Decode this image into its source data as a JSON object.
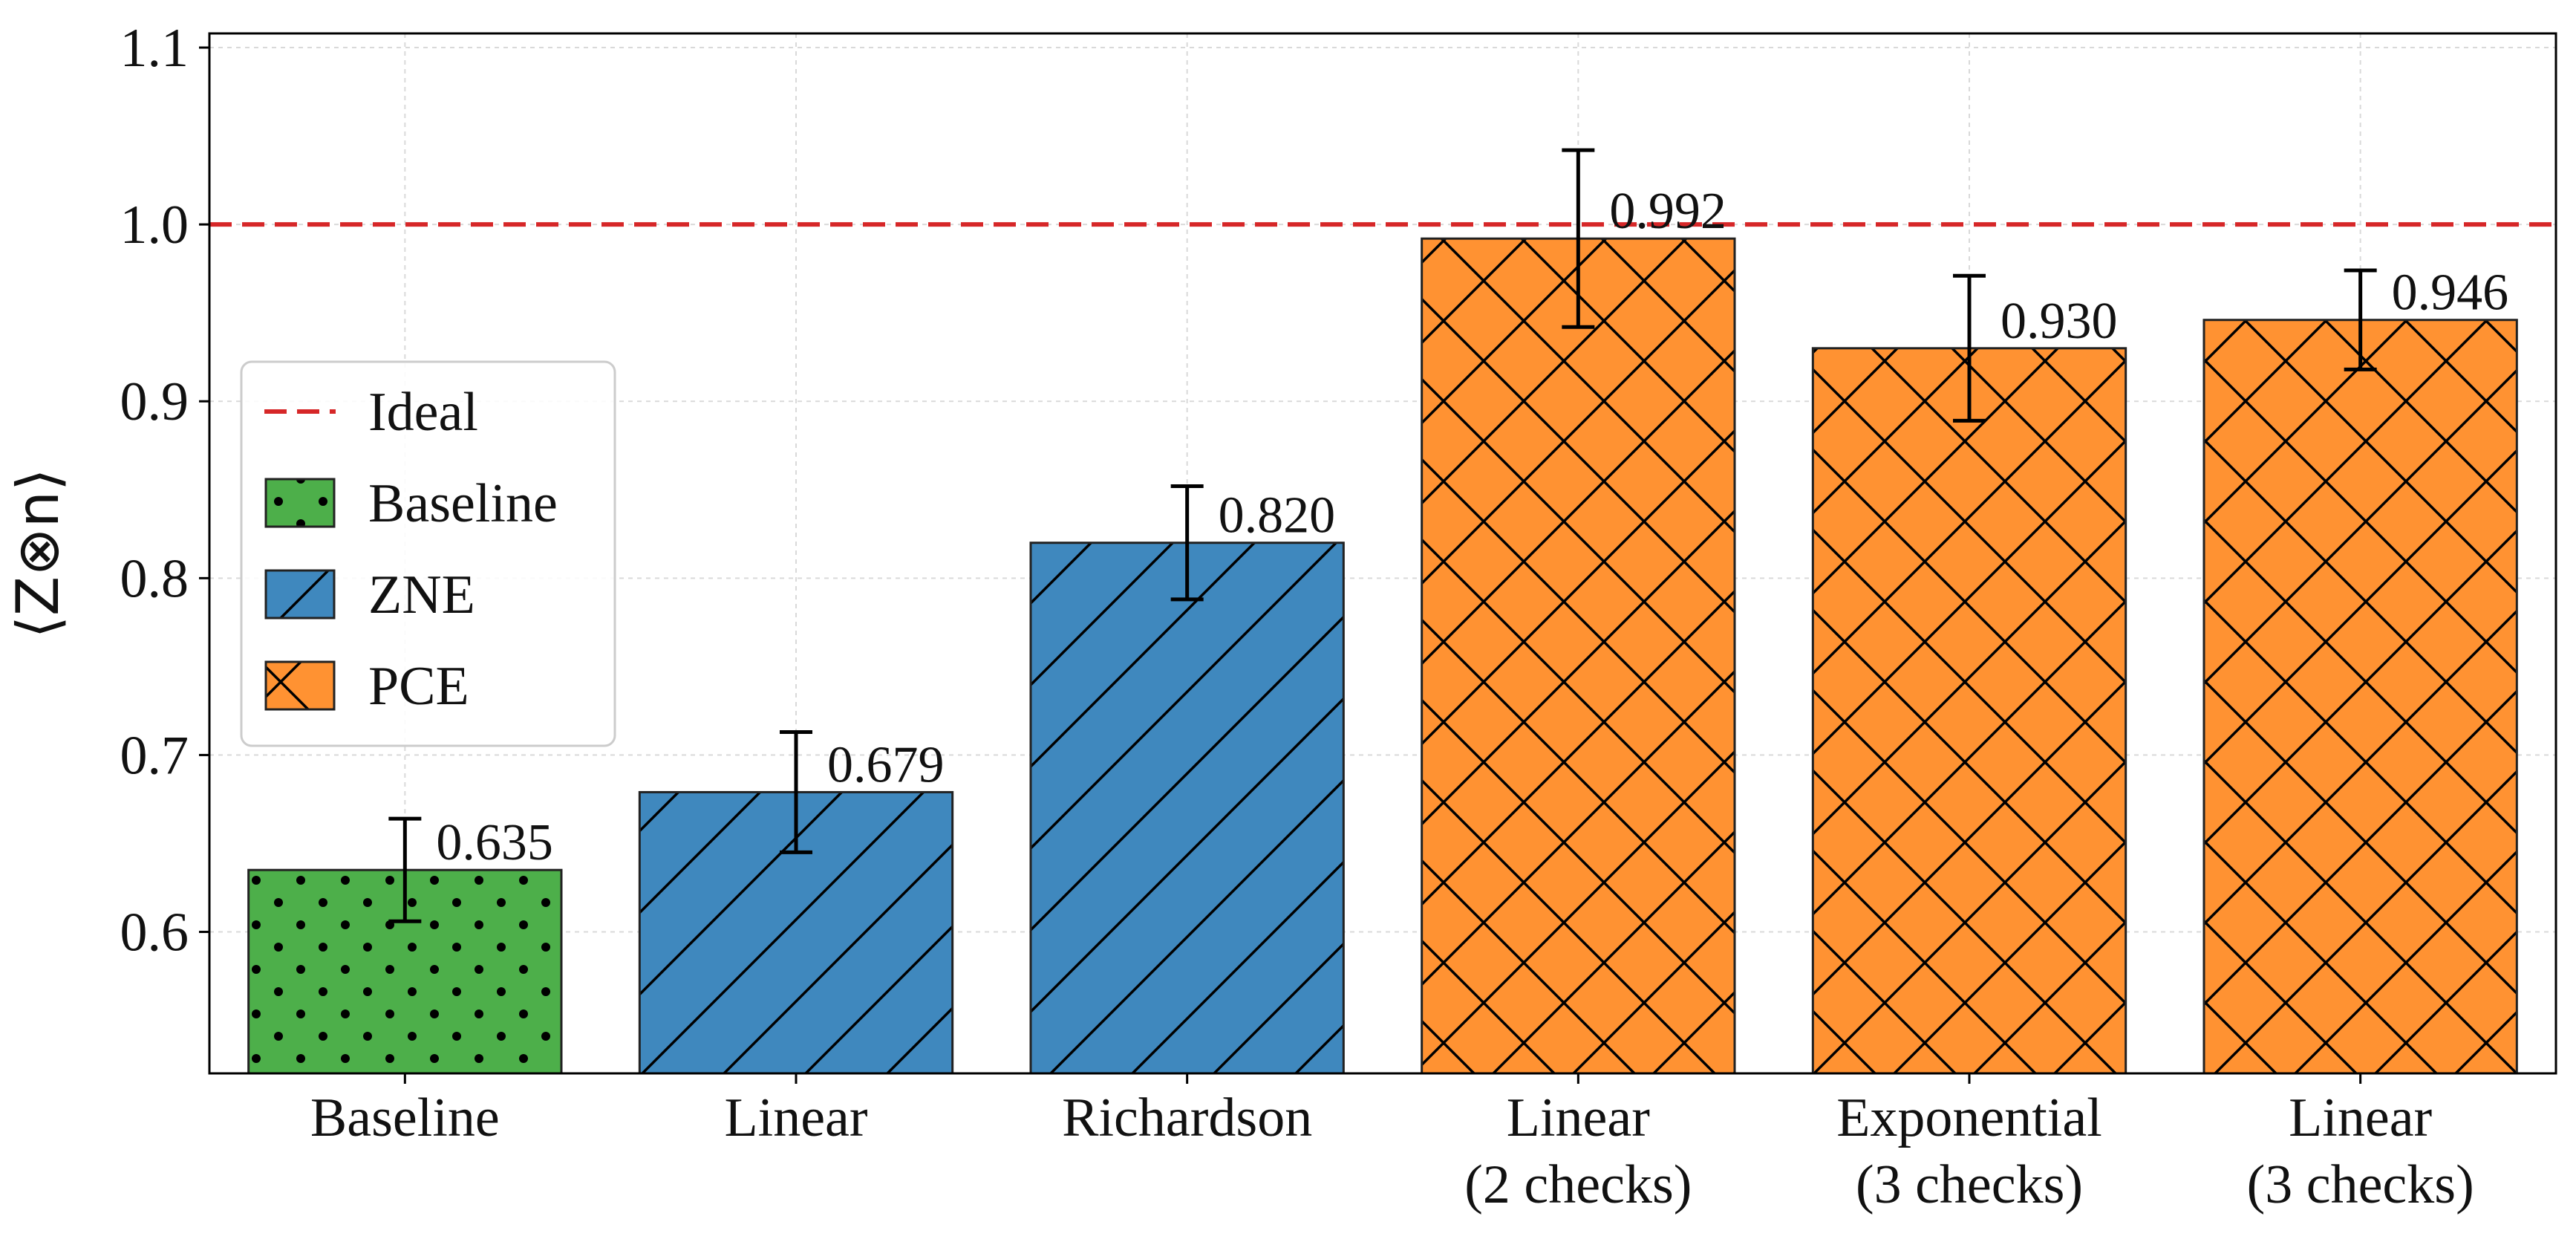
{
  "chart_data": {
    "type": "bar",
    "ylabel": "⟨Z⊗n⟩",
    "ylim": [
      0.52,
      1.108
    ],
    "yticks": [
      0.6,
      0.7,
      0.8,
      0.9,
      1.0,
      1.1
    ],
    "ytick_labels": [
      "0.6",
      "0.7",
      "0.8",
      "0.9",
      "1.0",
      "1.1"
    ],
    "grid": true,
    "ideal_line": {
      "value": 1.0,
      "label": "Ideal",
      "color": "#d62728",
      "style": "dashed"
    },
    "categories": [
      {
        "label": [
          "Baseline"
        ],
        "group": "Baseline",
        "value": 0.635,
        "value_label": "0.635",
        "err": 0.029
      },
      {
        "label": [
          "Linear"
        ],
        "group": "ZNE",
        "value": 0.679,
        "value_label": "0.679",
        "err": 0.034
      },
      {
        "label": [
          "Richardson"
        ],
        "group": "ZNE",
        "value": 0.82,
        "value_label": "0.820",
        "err": 0.032
      },
      {
        "label": [
          "Linear",
          "(2 checks)"
        ],
        "group": "PCE",
        "value": 0.992,
        "value_label": "0.992",
        "err": 0.05
      },
      {
        "label": [
          "Exponential",
          "(3 checks)"
        ],
        "group": "PCE",
        "value": 0.93,
        "value_label": "0.930",
        "err": 0.041
      },
      {
        "label": [
          "Linear",
          "(3 checks)"
        ],
        "group": "PCE",
        "value": 0.946,
        "value_label": "0.946",
        "err": 0.028
      }
    ],
    "groups": [
      {
        "name": "Baseline",
        "color": "#4daf4a",
        "hatch": "dots"
      },
      {
        "name": "ZNE",
        "color": "#3f88be",
        "hatch": "diagonal"
      },
      {
        "name": "PCE",
        "color": "#ff9232",
        "hatch": "crosshatch"
      }
    ],
    "legend": {
      "position": "center-left",
      "entries": [
        {
          "kind": "line",
          "label": "Ideal",
          "color": "#d62728"
        },
        {
          "kind": "patch",
          "label": "Baseline",
          "group": "Baseline"
        },
        {
          "kind": "patch",
          "label": "ZNE",
          "group": "ZNE"
        },
        {
          "kind": "patch",
          "label": "PCE",
          "group": "PCE"
        }
      ]
    }
  }
}
